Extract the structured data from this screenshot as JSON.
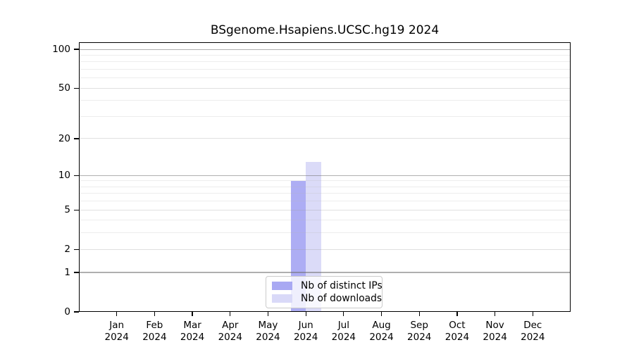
{
  "title": "BSgenome.Hsapiens.UCSC.hg19 2024",
  "colors": {
    "distinct_ips": "#a9a9f3",
    "downloads": "#d9d9f8",
    "axis": "#000000",
    "legend_border": "#cbcbcb",
    "background": "#ffffff"
  },
  "legend": {
    "entries": [
      {
        "label": "Nb of distinct IPs",
        "series": "distinct_ips"
      },
      {
        "label": "Nb of downloads",
        "series": "downloads"
      }
    ]
  },
  "x_axis": {
    "months": [
      "Jan",
      "Feb",
      "Mar",
      "Apr",
      "May",
      "Jun",
      "Jul",
      "Aug",
      "Sep",
      "Oct",
      "Nov",
      "Dec"
    ],
    "year": "2024"
  },
  "y_axis": {
    "tick_labels": [
      "100",
      "50",
      "20",
      "10",
      "5",
      "2",
      "1",
      "0"
    ],
    "tick_values": [
      100,
      50,
      20,
      10,
      5,
      2,
      1,
      0
    ],
    "major_lines": [
      1,
      10,
      100
    ],
    "medium_lines": [
      2,
      5,
      20,
      50
    ],
    "minor_lines": [
      3,
      4,
      6,
      7,
      8,
      9,
      30,
      40,
      60,
      70,
      80,
      90
    ],
    "scale": "log1p",
    "max": 100
  },
  "chart_data": {
    "type": "bar",
    "title": "BSgenome.Hsapiens.UCSC.hg19 2024",
    "categories": [
      "Jan 2024",
      "Feb 2024",
      "Mar 2024",
      "Apr 2024",
      "May 2024",
      "Jun 2024",
      "Jul 2024",
      "Aug 2024",
      "Sep 2024",
      "Oct 2024",
      "Nov 2024",
      "Dec 2024"
    ],
    "series": [
      {
        "name": "Nb of distinct IPs",
        "color": "#a9a9f3",
        "values": [
          0,
          0,
          0,
          0,
          0,
          9,
          0,
          0,
          0,
          0,
          0,
          0
        ]
      },
      {
        "name": "Nb of downloads",
        "color": "#d9d9f8",
        "values": [
          0,
          0,
          0,
          0,
          0,
          13,
          0,
          0,
          0,
          0,
          0,
          0
        ]
      }
    ],
    "xlabel": "",
    "ylabel": "",
    "yscale": "log1p",
    "y_ticks": [
      0,
      1,
      2,
      5,
      10,
      20,
      50,
      100
    ],
    "ylim": [
      0,
      110
    ],
    "grid": true,
    "legend_position": "lower center"
  }
}
